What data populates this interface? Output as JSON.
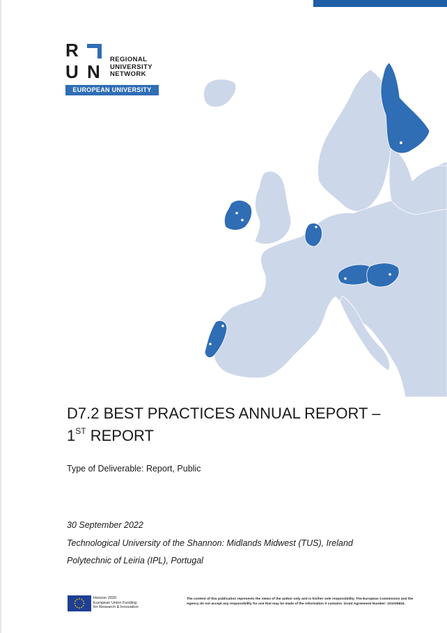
{
  "logo": {
    "letters": [
      "R",
      "U",
      "N"
    ],
    "name_lines": [
      "REGIONAL",
      "UNIVERSITY",
      "NETWORK"
    ],
    "band_text": "EUROPEAN UNIVERSITY"
  },
  "map": {
    "highlighted_countries": [
      "Finland",
      "Ireland",
      "Netherlands",
      "Austria",
      "Hungary",
      "Portugal"
    ],
    "highlight_color": "#2f6db5",
    "base_color": "#cdd7ea"
  },
  "title": {
    "line1": "D7.2 BEST PRACTICES ANNUAL REPORT –",
    "line2_prefix": "1",
    "line2_sup": "ST",
    "line2_suffix": " REPORT"
  },
  "deliverable_type": "Type of Deliverable: Report, Public",
  "meta": {
    "date": "30 September 2022",
    "institution1": "Technological University of the Shannon: Midlands Midwest (TUS), Ireland",
    "institution2": "Polytechnic of Leiria (IPL), Portugal"
  },
  "footer": {
    "funding_lines": [
      "Horizon 2020",
      "European Union Funding",
      "for Research & Innovation"
    ],
    "disclaimer": "The content of this publication represents the views of the author only and is his/her sole responsibility. The European Commission and the Agency do not accept any responsibility for use that may be made of the information it contains. Grant Agreement Number: 101035816."
  },
  "colors": {
    "accent": "#1f5fa8",
    "band": "#2f6db5",
    "eu_flag": "#1e3f94",
    "eu_stars": "#ffcc00"
  }
}
